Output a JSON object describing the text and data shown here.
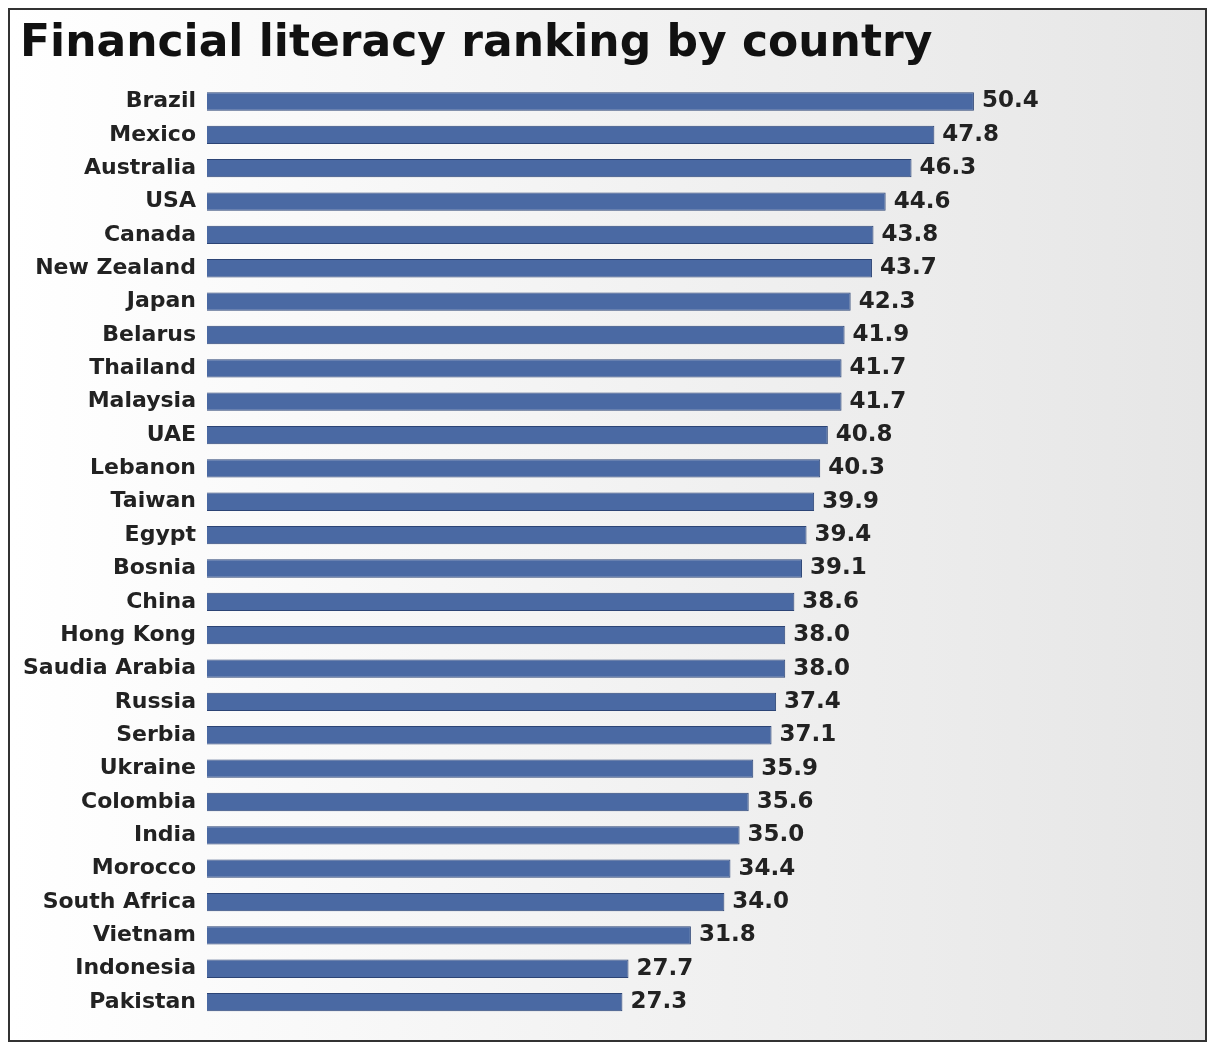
{
  "chart_data": {
    "type": "bar",
    "orientation": "horizontal",
    "title": "Financial literacy ranking by country",
    "categories": [
      "Brazil",
      "Mexico",
      "Australia",
      "USA",
      "Canada",
      "New Zealand",
      "Japan",
      "Belarus",
      "Thailand",
      "Malaysia",
      "UAE",
      "Lebanon",
      "Taiwan",
      "Egypt",
      "Bosnia",
      "China",
      "Hong Kong",
      "Saudia Arabia",
      "Russia",
      "Serbia",
      "Ukraine",
      "Colombia",
      "India",
      "Morocco",
      "South Africa",
      "Vietnam",
      "Indonesia",
      "Pakistan"
    ],
    "values": [
      50.4,
      47.8,
      46.3,
      44.6,
      43.8,
      43.7,
      42.3,
      41.9,
      41.7,
      41.7,
      40.8,
      40.3,
      39.9,
      39.4,
      39.1,
      38.6,
      38.0,
      38.0,
      37.4,
      37.1,
      35.9,
      35.6,
      35.0,
      34.4,
      34.0,
      31.8,
      27.7,
      27.3
    ],
    "value_labels": [
      "50.4",
      "47.8",
      "46.3",
      "44.6",
      "43.8",
      "43.7",
      "42.3",
      "41.9",
      "41.7",
      "41.7",
      "40.8",
      "40.3",
      "39.9",
      "39.4",
      "39.1",
      "38.6",
      "38.0",
      "38.0",
      "37.4",
      "37.1",
      "35.9",
      "35.6",
      "35.0",
      "34.4",
      "34.0",
      "31.8",
      "27.7",
      "27.3"
    ],
    "color": "#4a69a3",
    "grid": false,
    "legend": false
  }
}
